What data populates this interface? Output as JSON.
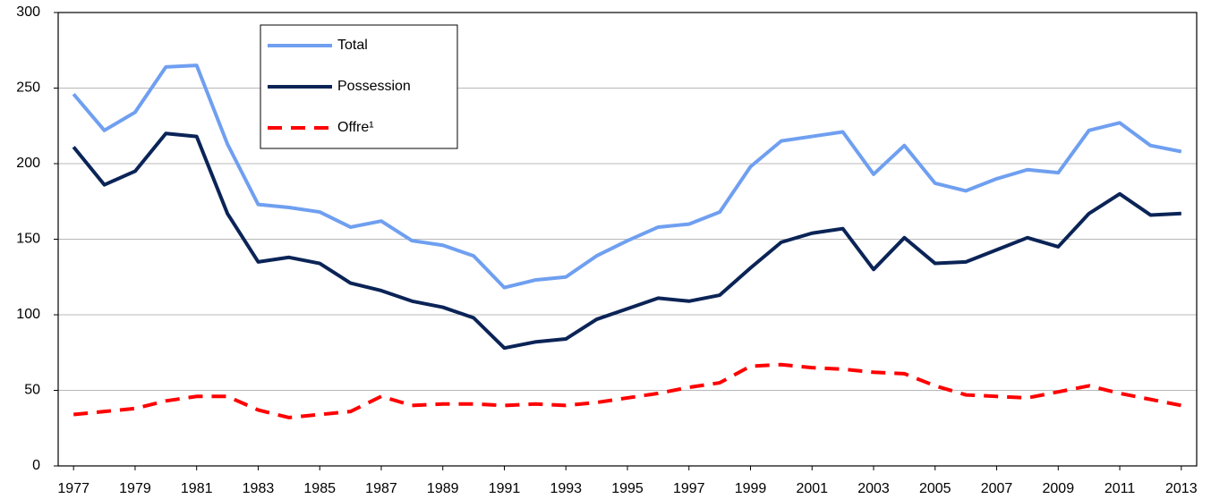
{
  "chart_data": {
    "type": "line",
    "x": [
      1977,
      1978,
      1979,
      1980,
      1981,
      1982,
      1983,
      1984,
      1985,
      1986,
      1987,
      1988,
      1989,
      1990,
      1991,
      1992,
      1993,
      1994,
      1995,
      1996,
      1997,
      1998,
      1999,
      2000,
      2001,
      2002,
      2003,
      2004,
      2005,
      2006,
      2007,
      2008,
      2009,
      2010,
      2011,
      2012,
      2013
    ],
    "xlim": [
      1976.5,
      2013.5
    ],
    "xticks": [
      1977,
      1979,
      1981,
      1983,
      1985,
      1987,
      1989,
      1991,
      1993,
      1995,
      1997,
      1999,
      2001,
      2003,
      2005,
      2007,
      2009,
      2011,
      2013
    ],
    "ylim": [
      0,
      300
    ],
    "yticks": [
      0,
      50,
      100,
      150,
      200,
      250,
      300
    ],
    "grid": true,
    "legend": "upper left",
    "series": [
      {
        "name": "Total",
        "color": "#6f9ff0",
        "style": "solid",
        "values": [
          246,
          222,
          234,
          264,
          265,
          213,
          173,
          171,
          168,
          158,
          162,
          149,
          146,
          139,
          118,
          123,
          125,
          139,
          149,
          158,
          160,
          168,
          198,
          215,
          218,
          221,
          193,
          212,
          187,
          182,
          190,
          196,
          194,
          222,
          227,
          212,
          208
        ]
      },
      {
        "name": "Possession",
        "color": "#0b2457",
        "style": "solid",
        "values": [
          211,
          186,
          195,
          220,
          218,
          167,
          135,
          138,
          134,
          121,
          116,
          109,
          105,
          98,
          78,
          82,
          84,
          97,
          104,
          111,
          109,
          113,
          131,
          148,
          154,
          157,
          130,
          151,
          134,
          135,
          143,
          151,
          145,
          167,
          180,
          166,
          167
        ]
      },
      {
        "name": "Offre¹",
        "color": "#ff0000",
        "style": "dashed",
        "values": [
          34,
          36,
          38,
          43,
          46,
          46,
          37,
          32,
          34,
          36,
          46,
          40,
          41,
          41,
          40,
          41,
          40,
          42,
          45,
          48,
          52,
          55,
          66,
          67,
          65,
          64,
          62,
          61,
          53,
          47,
          46,
          45,
          49,
          53,
          48,
          44,
          40
        ]
      }
    ]
  }
}
